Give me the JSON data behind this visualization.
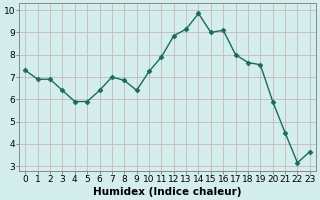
{
  "x": [
    0,
    1,
    2,
    3,
    4,
    5,
    6,
    7,
    8,
    9,
    10,
    11,
    12,
    13,
    14,
    15,
    16,
    17,
    18,
    19,
    20,
    21,
    22,
    23
  ],
  "y": [
    7.3,
    6.9,
    6.9,
    6.4,
    5.9,
    5.9,
    6.4,
    7.0,
    6.85,
    6.4,
    7.25,
    7.9,
    8.85,
    9.15,
    9.85,
    9.0,
    9.1,
    8.0,
    7.65,
    7.55,
    5.9,
    4.5,
    3.15,
    3.65
  ],
  "line_color": "#1a6b5a",
  "marker": "D",
  "marker_size": 2.5,
  "bg_color": "#d4eeee",
  "grid_color": "#c8b8b8",
  "xlabel": "Humidex (Indice chaleur)",
  "ylim_min": 2.8,
  "ylim_max": 10.3,
  "xlim_min": -0.5,
  "xlim_max": 23.5,
  "yticks": [
    3,
    4,
    5,
    6,
    7,
    8,
    9,
    10
  ],
  "xticks": [
    0,
    1,
    2,
    3,
    4,
    5,
    6,
    7,
    8,
    9,
    10,
    11,
    12,
    13,
    14,
    15,
    16,
    17,
    18,
    19,
    20,
    21,
    22,
    23
  ],
  "xlabel_fontsize": 7.5,
  "tick_fontsize": 6.5,
  "line_width": 1.0,
  "fig_bg_color": "#d4eeee",
  "spine_color": "#888888"
}
